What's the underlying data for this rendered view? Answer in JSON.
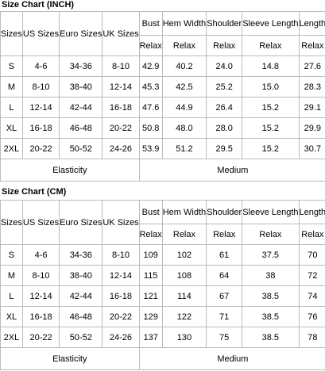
{
  "tables": [
    {
      "title": "Size Chart (INCH)",
      "headers": [
        "Sizes",
        "US Sizes",
        "Euro Sizes",
        "UK Sizes",
        "Bust",
        "Hem Width",
        "Shoulder",
        "Sleeve Length",
        "Length"
      ],
      "subheaders": [
        "Relax",
        "Relax",
        "Relax",
        "Relax",
        "Relax"
      ],
      "rows": [
        [
          "S",
          "4-6",
          "34-36",
          "8-10",
          "42.9",
          "40.2",
          "24.0",
          "14.8",
          "27.6"
        ],
        [
          "M",
          "8-10",
          "38-40",
          "12-14",
          "45.3",
          "42.5",
          "25.2",
          "15.0",
          "28.3"
        ],
        [
          "L",
          "12-14",
          "42-44",
          "16-18",
          "47.6",
          "44.9",
          "26.4",
          "15.2",
          "29.1"
        ],
        [
          "XL",
          "16-18",
          "46-48",
          "20-22",
          "50.8",
          "48.0",
          "28.0",
          "15.2",
          "29.9"
        ],
        [
          "2XL",
          "20-22",
          "50-52",
          "24-26",
          "53.9",
          "51.2",
          "29.5",
          "15.2",
          "30.7"
        ]
      ],
      "footer": [
        "Elasticity",
        "Medium"
      ]
    },
    {
      "title": "Size Chart (CM)",
      "headers": [
        "Sizes",
        "US Sizes",
        "Euro Sizes",
        "UK Sizes",
        "Bust",
        "Hem Width",
        "Shoulder",
        "Sleeve Length",
        "Length"
      ],
      "subheaders": [
        "Relax",
        "Relax",
        "Relax",
        "Relax",
        "Relax"
      ],
      "rows": [
        [
          "S",
          "4-6",
          "34-36",
          "8-10",
          "109",
          "102",
          "61",
          "37.5",
          "70"
        ],
        [
          "M",
          "8-10",
          "38-40",
          "12-14",
          "115",
          "108",
          "64",
          "38",
          "72"
        ],
        [
          "L",
          "12-14",
          "42-44",
          "16-18",
          "121",
          "114",
          "67",
          "38.5",
          "74"
        ],
        [
          "XL",
          "16-18",
          "46-48",
          "20-22",
          "129",
          "122",
          "71",
          "38.5",
          "76"
        ],
        [
          "2XL",
          "20-22",
          "50-52",
          "24-26",
          "137",
          "130",
          "75",
          "38.5",
          "78"
        ]
      ],
      "footer": [
        "Elasticity",
        "Medium"
      ]
    }
  ]
}
